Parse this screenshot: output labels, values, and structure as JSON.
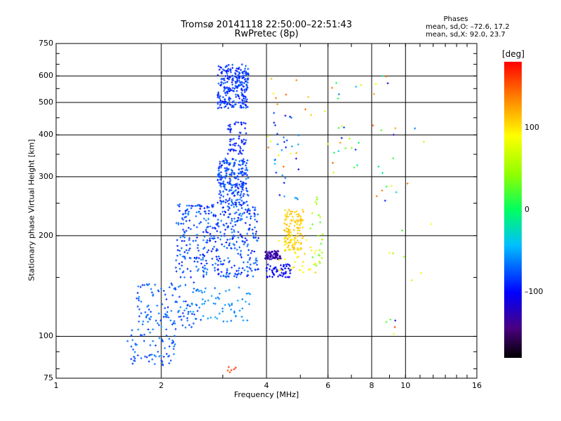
{
  "chart_data": {
    "type": "scatter",
    "title": "Tromsø 20141118 22:50:00–22:51:43",
    "subtitle": "RwPretec (8p)",
    "xlabel": "Frequency [MHz]",
    "ylabel": "Stationary phase Virtual Height [km]",
    "xscale": "log",
    "yscale": "log",
    "xlim": [
      1,
      16
    ],
    "ylim": [
      75,
      750
    ],
    "xticks": [
      "1",
      "2",
      "4",
      "6",
      "8",
      "10",
      "16"
    ],
    "xtick_values": [
      1,
      2,
      4,
      6,
      8,
      10,
      16
    ],
    "yticks": [
      "75",
      "100",
      "200",
      "300",
      "400",
      "500",
      "600",
      "750"
    ],
    "ytick_values": [
      75,
      100,
      200,
      300,
      400,
      500,
      600,
      750
    ],
    "grid": true,
    "stats_title": "Phases",
    "stats_line1": "mean, sd,O: –72.6, 17.2",
    "stats_line2": "mean, sd,X:  92.0, 23.7",
    "colorbar": {
      "label": "[deg]",
      "range": [
        -180,
        180
      ],
      "ticks": [
        "100",
        "0",
        "–100"
      ],
      "tick_values": [
        100,
        0,
        -100
      ]
    },
    "clusters": [
      {
        "f": [
          2.9,
          3.55
        ],
        "h": [
          480,
          650
        ],
        "phase": [
          -100,
          -70
        ],
        "n": 260
      },
      {
        "f": [
          2.9,
          3.55
        ],
        "h": [
          250,
          340
        ],
        "phase": [
          -95,
          -65
        ],
        "n": 230
      },
      {
        "f": [
          3.1,
          3.5
        ],
        "h": [
          350,
          440
        ],
        "phase": [
          -100,
          -80
        ],
        "n": 60
      },
      {
        "f": [
          2.2,
          3.8
        ],
        "h": [
          150,
          250
        ],
        "phase": [
          -100,
          -60
        ],
        "n": 430
      },
      {
        "f": [
          1.7,
          2.6
        ],
        "h": [
          105,
          145
        ],
        "phase": [
          -90,
          -60
        ],
        "n": 120
      },
      {
        "f": [
          1.6,
          2.2
        ],
        "h": [
          82,
          105
        ],
        "phase": [
          -90,
          -60
        ],
        "n": 70
      },
      {
        "f": [
          2.4,
          3.6
        ],
        "h": [
          110,
          140
        ],
        "phase": [
          -70,
          -50
        ],
        "n": 60
      },
      {
        "f": [
          3.95,
          4.4
        ],
        "h": [
          170,
          180
        ],
        "phase": [
          -140,
          -120
        ],
        "n": 70
      },
      {
        "f": [
          4.0,
          4.7
        ],
        "h": [
          150,
          165
        ],
        "phase": [
          -110,
          -95
        ],
        "n": 60
      },
      {
        "f": [
          4.5,
          5.1
        ],
        "h": [
          180,
          240
        ],
        "phase": [
          100,
          120
        ],
        "n": 120
      },
      {
        "f": [
          4.3,
          5.6
        ],
        "h": [
          155,
          200
        ],
        "phase": [
          75,
          110
        ],
        "n": 40
      },
      {
        "f": [
          5.3,
          5.8
        ],
        "h": [
          160,
          270
        ],
        "phase": [
          20,
          70
        ],
        "n": 25
      },
      {
        "f": [
          4.2,
          5.0
        ],
        "h": [
          250,
          480
        ],
        "phase": [
          -120,
          -40
        ],
        "n": 30
      },
      {
        "f": [
          4.0,
          6.2
        ],
        "h": [
          300,
          600
        ],
        "phase": [
          70,
          150
        ],
        "n": 20
      },
      {
        "f": [
          6.2,
          7.5
        ],
        "h": [
          300,
          580
        ],
        "phase": [
          -110,
          140
        ],
        "n": 20
      },
      {
        "f": [
          8.0,
          9.5
        ],
        "h": [
          100,
          640
        ],
        "phase": [
          -130,
          160
        ],
        "n": 25
      },
      {
        "f": [
          9.5,
          12.0
        ],
        "h": [
          130,
          510
        ],
        "phase": [
          -70,
          150
        ],
        "n": 8
      },
      {
        "f": [
          3.1,
          3.3
        ],
        "h": [
          78,
          82
        ],
        "phase": [
          150,
          170
        ],
        "n": 6
      }
    ]
  }
}
